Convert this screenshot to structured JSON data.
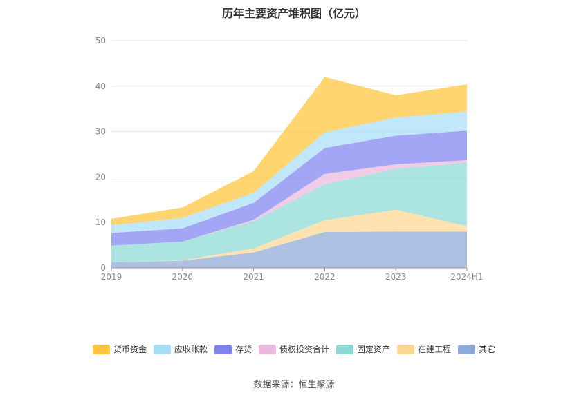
{
  "chart_data": {
    "type": "area",
    "stacked": true,
    "title": "历年主要资产堆积图（亿元）",
    "x": [
      "2019",
      "2020",
      "2021",
      "2022",
      "2023",
      "2024H1"
    ],
    "ylim": [
      0,
      50
    ],
    "yticks": [
      0,
      10,
      20,
      30,
      40,
      50
    ],
    "grid": true,
    "legend_position": "bottom",
    "series": [
      {
        "name": "其它",
        "color": "#8eaad8",
        "values": [
          1.2,
          1.6,
          3.4,
          7.9,
          8.0,
          8.0
        ]
      },
      {
        "name": "在建工程",
        "color": "#fdd892",
        "values": [
          0.0,
          0.1,
          0.9,
          2.6,
          4.8,
          1.2
        ]
      },
      {
        "name": "固定资产",
        "color": "#8cd9d6",
        "values": [
          3.7,
          4.1,
          6.0,
          7.9,
          9.0,
          14.0
        ]
      },
      {
        "name": "债权投资合计",
        "color": "#eab8dc",
        "values": [
          0.0,
          0.0,
          0.3,
          2.3,
          1.0,
          0.5
        ]
      },
      {
        "name": "存货",
        "color": "#7f83f0",
        "values": [
          2.8,
          2.9,
          3.7,
          5.7,
          6.3,
          6.5
        ]
      },
      {
        "name": "应收账款",
        "color": "#a8def8",
        "values": [
          1.7,
          2.3,
          2.2,
          3.4,
          4.0,
          4.2
        ]
      },
      {
        "name": "货币资金",
        "color": "#fec53a",
        "values": [
          1.4,
          2.3,
          4.8,
          12.2,
          4.9,
          6.0
        ]
      }
    ],
    "legend_order": [
      "货币资金",
      "应收账款",
      "存货",
      "债权投资合计",
      "固定资产",
      "在建工程",
      "其它"
    ]
  },
  "source_text": "数据来源：恒生聚源"
}
